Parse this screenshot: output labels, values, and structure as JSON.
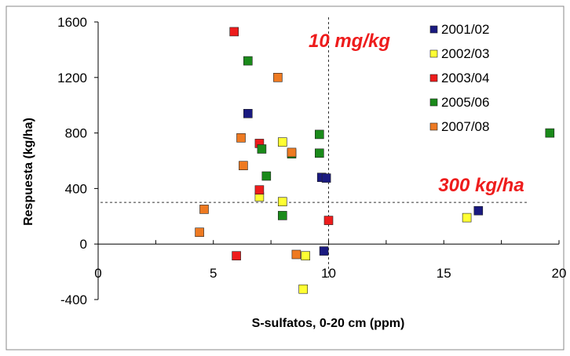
{
  "chart_data": {
    "type": "scatter",
    "xlabel": "S-sulfatos, 0-20 cm (ppm)",
    "ylabel": "Respuesta (kg/ha)",
    "xlim": [
      0,
      20
    ],
    "ylim": [
      -400,
      1600
    ],
    "x_ticks": [
      0,
      5,
      10,
      15,
      20
    ],
    "y_ticks": [
      -400,
      0,
      400,
      800,
      1200,
      1600
    ],
    "grid": false,
    "legend_position": "top-right",
    "reference_lines": [
      {
        "orientation": "vertical",
        "value": 10,
        "label": "10 mg/kg"
      },
      {
        "orientation": "horizontal",
        "value": 300,
        "label": "300 kg/ha"
      }
    ],
    "series": [
      {
        "name": "2001/02",
        "color": "#1a1a80",
        "points": [
          [
            6.5,
            940
          ],
          [
            9.7,
            480
          ],
          [
            9.9,
            475
          ],
          [
            9.8,
            -50
          ],
          [
            16.5,
            240
          ]
        ]
      },
      {
        "name": "2002/03",
        "color": "#ffff33",
        "points": [
          [
            8.0,
            735
          ],
          [
            8.0,
            305
          ],
          [
            7.0,
            340
          ],
          [
            9.0,
            -85
          ],
          [
            8.9,
            -325
          ],
          [
            16.0,
            190
          ]
        ]
      },
      {
        "name": "2003/04",
        "color": "#ee1c1c",
        "points": [
          [
            5.9,
            1530
          ],
          [
            7.0,
            725
          ],
          [
            7.0,
            390
          ],
          [
            10.0,
            170
          ],
          [
            6.0,
            -85
          ]
        ]
      },
      {
        "name": "2005/06",
        "color": "#1a8a1a",
        "points": [
          [
            6.5,
            1320
          ],
          [
            7.1,
            685
          ],
          [
            8.4,
            650
          ],
          [
            7.3,
            490
          ],
          [
            9.6,
            790
          ],
          [
            9.6,
            655
          ],
          [
            8.0,
            205
          ],
          [
            19.6,
            800
          ]
        ]
      },
      {
        "name": "2007/08",
        "color": "#ee7a22",
        "points": [
          [
            7.8,
            1200
          ],
          [
            6.2,
            765
          ],
          [
            8.4,
            660
          ],
          [
            6.3,
            565
          ],
          [
            4.6,
            250
          ],
          [
            4.4,
            85
          ],
          [
            8.6,
            -75
          ]
        ]
      }
    ]
  }
}
